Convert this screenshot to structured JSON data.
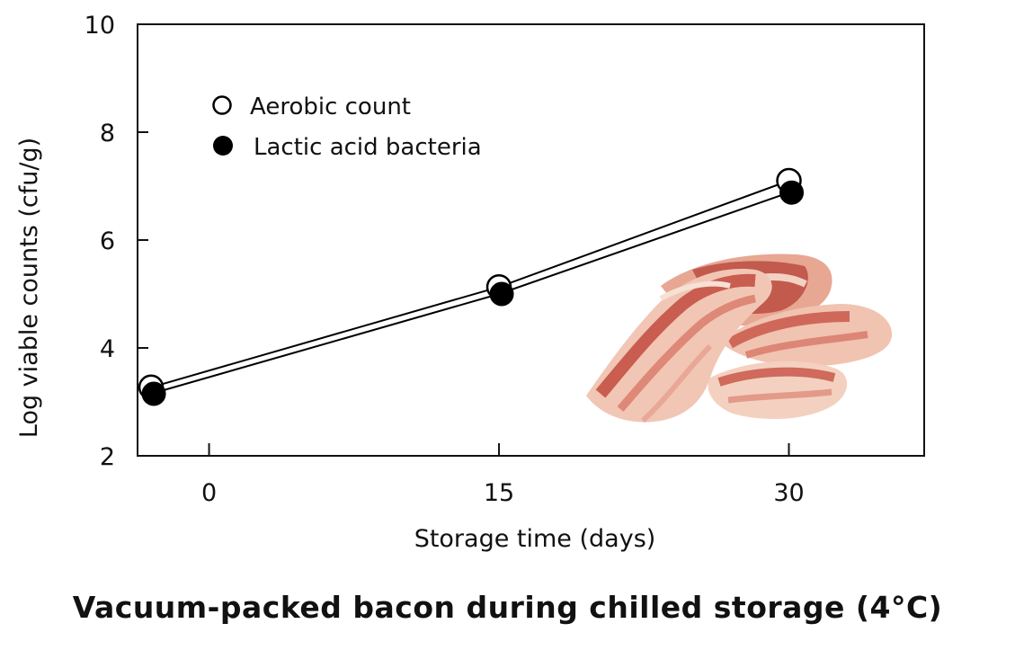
{
  "page": {
    "caption": "Vacuum-packed bacon during chilled storage (4°C)"
  },
  "chart_data": {
    "type": "line",
    "title": "",
    "xlabel": "Storage time (days)",
    "ylabel": "Log viable counts (cfu/g)",
    "x_ticks": [
      0,
      15,
      30
    ],
    "y_ticks": [
      2,
      4,
      6,
      8,
      10
    ],
    "xlim": [
      -3.7,
      37
    ],
    "ylim": [
      2,
      10
    ],
    "grid": false,
    "legend_position": "top-left",
    "series": [
      {
        "name": "Aerobic count",
        "marker": "open-circle",
        "color": "#000000",
        "x": [
          -3,
          15,
          30
        ],
        "y": [
          3.27,
          5.13,
          7.1
        ]
      },
      {
        "name": "Lactic acid bacteria",
        "marker": "filled-circle",
        "color": "#000000",
        "x": [
          -3,
          15,
          30
        ],
        "y": [
          3.15,
          5.0,
          6.88
        ]
      }
    ],
    "illustration": "bacon-slices"
  }
}
